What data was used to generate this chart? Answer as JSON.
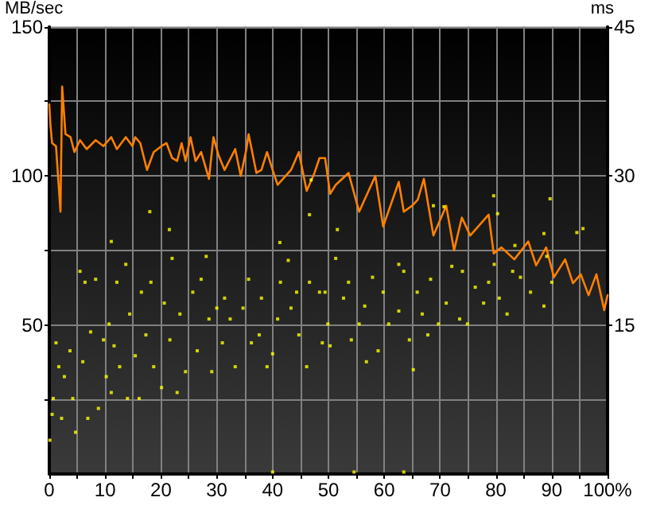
{
  "chart_data": {
    "type": "line",
    "ylabel": "MB/sec",
    "y2label": "ms",
    "xlim": [
      0,
      100
    ],
    "xticks": [
      0,
      {
        "value": 5,
        "label": null
      },
      10,
      {
        "value": 15,
        "label": null
      },
      20,
      {
        "value": 25,
        "label": null
      },
      30,
      {
        "value": 35,
        "label": null
      },
      40,
      {
        "value": 45,
        "label": null
      },
      50,
      {
        "value": 55,
        "label": null
      },
      60,
      {
        "value": 65,
        "label": null
      },
      70,
      {
        "value": 75,
        "label": null
      },
      80,
      {
        "value": 85,
        "label": null
      },
      90,
      {
        "value": 95,
        "label": null
      },
      {
        "value": 100,
        "label": "100%"
      }
    ],
    "ylim": [
      0,
      150
    ],
    "yticks": [
      {
        "value": 25,
        "label": null
      },
      50,
      {
        "value": 75,
        "label": null
      },
      100,
      {
        "value": 125,
        "label": null
      },
      150
    ],
    "y2lim": [
      0,
      45
    ],
    "y2ticks": [
      15,
      30,
      45
    ],
    "grid": true,
    "series": [
      {
        "type": "line",
        "color": "#ff8000",
        "marker": "none",
        "x": [
          0,
          0.2,
          0.5,
          1.2,
          2,
          2.3,
          2.9,
          3.8,
          4.5,
          5.5,
          6.7,
          8.3,
          9.7,
          11.1,
          12.1,
          13.7,
          14.9,
          15.4,
          16.3,
          17.5,
          18.7,
          20.1,
          21,
          22,
          22.9,
          23.7,
          24.4,
          25.3,
          26.2,
          27.2,
          28.6,
          29.4,
          30.3,
          31.4,
          33.3,
          34.3,
          35.3,
          35.7,
          37.1,
          38,
          39,
          40,
          40.9,
          43.3,
          44.7,
          46.1,
          47.5,
          48.4,
          49.4,
          50.3,
          51.3,
          53.6,
          55.5,
          58.4,
          59.8,
          62.6,
          63.5,
          65,
          66,
          67.1,
          68.8,
          71.1,
          72.5,
          73.9,
          75.4,
          78.7,
          79.6,
          81,
          83.3,
          85.8,
          87.2,
          89,
          90.4,
          92.4,
          93.8,
          95.2,
          96.6,
          98,
          99.4,
          100
        ],
        "values": [
          124,
          117,
          111,
          110,
          88,
          130,
          114,
          113,
          108,
          112,
          109,
          112,
          110,
          113,
          109,
          113,
          110,
          113,
          111,
          102,
          108,
          110,
          111,
          106,
          105,
          111,
          105,
          113,
          105,
          108,
          99,
          113,
          107,
          102,
          109,
          100,
          109,
          114,
          101,
          102,
          108,
          102,
          97,
          102,
          108,
          95,
          101,
          106,
          106,
          94,
          97,
          101,
          88,
          100,
          83,
          98,
          88,
          90,
          92,
          99,
          80,
          90,
          75,
          86,
          80,
          87,
          74,
          76,
          72,
          78,
          70,
          76,
          66,
          72,
          64,
          67,
          60,
          67,
          55,
          60
        ]
      },
      {
        "type": "scatter",
        "axis": "y2",
        "color": "#ffff00",
        "marker": "square",
        "x": [
          0.1,
          0.5,
          0.7,
          1.2,
          1.7,
          2.2,
          2.7,
          3.7,
          4.2,
          4.7,
          5.5,
          6.0,
          6.4,
          6.9,
          7.4,
          8.3,
          8.8,
          9.7,
          10.2,
          10.7,
          11.1,
          11.6,
          12.1,
          12.6,
          13.7,
          14.0,
          14.4,
          15.4,
          16.1,
          16.5,
          17.3,
          18.2,
          18.7,
          20.1,
          20.6,
          21.6,
          22.0,
          22.9,
          23.4,
          24.4,
          25.7,
          26.5,
          27.2,
          28.1,
          28.6,
          29.1,
          30.0,
          31.0,
          31.4,
          32.4,
          33.3,
          34.7,
          35.7,
          36.2,
          37.6,
          38.0,
          39.0,
          40.0,
          40.9,
          41.4,
          42.8,
          43.3,
          44.3,
          44.7,
          46.1,
          46.6,
          48.4,
          48.9,
          49.9,
          49.4,
          50.3,
          51.3,
          52.7,
          53.6,
          54.1,
          55.5,
          56.5,
          56.8,
          57.9,
          58.9,
          59.8,
          60.8,
          62.6,
          62.6,
          63.5,
          64.5,
          65.2,
          65.9,
          66.8,
          67.8,
          68.3,
          69.7,
          71.1,
          72.1,
          73.5,
          74.0,
          74.9,
          76.3,
          77.8,
          78.7,
          79.7,
          80.6,
          82.0,
          83.0,
          83.4,
          84.4,
          86.2,
          88.6,
          89.1,
          90.0,
          79.6,
          89.7,
          51.6,
          68.8,
          70.7,
          88.6,
          95.6,
          94.5,
          80.3,
          54.6,
          63.5,
          40.0,
          11.1,
          18.0,
          21.5,
          41.3,
          46.6,
          46.9
        ],
        "values": [
          3.4,
          6.0,
          7.6,
          13.2,
          10.8,
          5.6,
          9.8,
          12.4,
          7.6,
          4.2,
          20.4,
          11.3,
          19.3,
          5.6,
          14.3,
          19.6,
          6.6,
          13.5,
          9.8,
          15.1,
          8.2,
          12.9,
          19.3,
          10.8,
          21.1,
          7.6,
          16.1,
          11.9,
          7.6,
          18.3,
          14.0,
          19.3,
          10.8,
          8.7,
          17.2,
          13.5,
          21.7,
          8.2,
          16.1,
          10.3,
          18.3,
          12.4,
          19.6,
          21.9,
          15.6,
          10.3,
          16.7,
          13.2,
          17.7,
          15.6,
          10.8,
          16.7,
          19.6,
          13.2,
          14.0,
          17.7,
          10.8,
          12.1,
          15.6,
          19.3,
          21.5,
          16.7,
          18.3,
          14.0,
          10.8,
          19.3,
          18.3,
          13.2,
          15.1,
          18.3,
          12.9,
          21.7,
          17.7,
          19.3,
          13.5,
          15.1,
          16.9,
          11.3,
          19.8,
          12.4,
          18.3,
          15.1,
          21.1,
          16.4,
          20.4,
          13.5,
          10.5,
          18.3,
          16.1,
          14.0,
          19.6,
          15.1,
          17.2,
          20.9,
          15.6,
          20.4,
          15.1,
          18.8,
          17.2,
          19.3,
          21.1,
          17.7,
          16.1,
          20.4,
          23.0,
          19.8,
          18.3,
          16.9,
          21.9,
          19.3,
          28.0,
          27.7,
          24.6,
          27.0,
          26.9,
          24.2,
          24.7,
          24.3,
          26.2,
          0.2,
          0.2,
          0.2,
          23.4,
          26.4,
          24.6,
          23.3,
          26.1,
          29.6
        ]
      }
    ]
  }
}
